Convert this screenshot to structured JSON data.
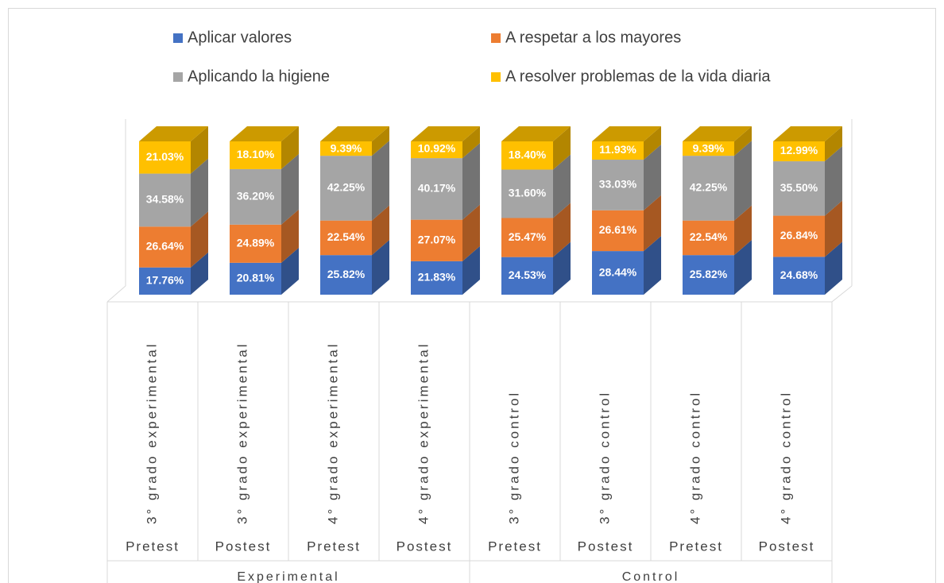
{
  "chart_data": {
    "type": "bar3d_stacked",
    "categories": [
      "3° grado experimental",
      "3° grado experimental",
      "4° grado experimental",
      "4° grado experimental",
      "3° grado control",
      "3° grado control",
      "4° grado control",
      "4° grado control"
    ],
    "phases": [
      "Pretest",
      "Postest",
      "Pretest",
      "Postest",
      "Pretest",
      "Postest",
      "Pretest",
      "Postest"
    ],
    "groups": [
      "Experimental",
      "Control"
    ],
    "legend": "top",
    "series": [
      {
        "name": "Aplicar valores",
        "color": "#4472c4",
        "values": [
          17.76,
          20.81,
          25.82,
          21.83,
          24.53,
          28.44,
          25.82,
          24.68
        ],
        "value_labels": [
          "17.76%",
          "20.81%",
          "25.82%",
          "21.83%",
          "24.53%",
          "28.44%",
          "25.82%",
          "24.68%"
        ]
      },
      {
        "name": "A respetar a los mayores",
        "color": "#ed7d31",
        "values": [
          26.64,
          24.89,
          22.54,
          27.07,
          25.47,
          26.61,
          22.54,
          26.84
        ],
        "value_labels": [
          "26.64%",
          "24.89%",
          "22.54%",
          "27.07%",
          "25.47%",
          "26.61%",
          "22.54%",
          "26.84%"
        ]
      },
      {
        "name": "Aplicando la higiene",
        "color": "#a5a5a5",
        "values": [
          34.58,
          36.2,
          42.25,
          40.17,
          31.6,
          33.03,
          42.25,
          35.5
        ],
        "value_labels": [
          "34.58%",
          "36.20%",
          "42.25%",
          "40.17%",
          "31.60%",
          "33.03%",
          "42.25%",
          "35.50%"
        ]
      },
      {
        "name": "A resolver problemas de la vida diaria",
        "color": "#ffc000",
        "values": [
          21.03,
          18.1,
          9.39,
          10.92,
          18.4,
          11.93,
          9.39,
          12.99
        ],
        "value_labels": [
          "21.03%",
          "18.10%",
          "9.39%",
          "10.92%",
          "18.40%",
          "11.93%",
          "9.39%",
          "12.99%"
        ]
      }
    ]
  }
}
